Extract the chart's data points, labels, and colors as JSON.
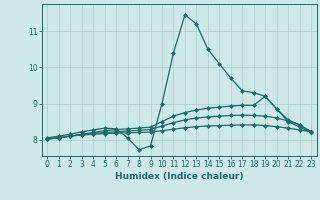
{
  "xlabel": "Humidex (Indice chaleur)",
  "bg_color": "#cce8e8",
  "grid_color": "#a8cccc",
  "line_color": "#1a6b6b",
  "x_ticks": [
    0,
    1,
    2,
    3,
    4,
    5,
    6,
    7,
    8,
    9,
    10,
    11,
    12,
    13,
    14,
    15,
    16,
    17,
    18,
    19,
    20,
    21,
    22,
    23
  ],
  "y_ticks": [
    8,
    9,
    10,
    11
  ],
  "ylim": [
    7.55,
    11.75
  ],
  "xlim": [
    -0.5,
    23.5
  ],
  "line1_x": [
    0,
    1,
    2,
    3,
    4,
    5,
    6,
    7,
    8,
    9,
    10,
    11,
    12,
    13,
    14,
    15,
    16,
    17,
    18,
    19,
    20,
    21,
    22,
    23
  ],
  "line1_y": [
    8.05,
    8.1,
    8.15,
    8.22,
    8.27,
    8.32,
    8.3,
    8.05,
    7.72,
    7.83,
    9.0,
    10.4,
    11.45,
    11.2,
    10.5,
    10.1,
    9.7,
    9.35,
    9.3,
    9.2,
    8.85,
    8.5,
    8.35,
    8.2
  ],
  "line2_x": [
    0,
    1,
    2,
    3,
    4,
    5,
    6,
    7,
    8,
    9,
    10,
    11,
    12,
    13,
    14,
    15,
    16,
    17,
    18,
    19,
    20,
    21,
    22,
    23
  ],
  "line2_y": [
    8.02,
    8.05,
    8.1,
    8.15,
    8.2,
    8.25,
    8.28,
    8.3,
    8.32,
    8.35,
    8.5,
    8.65,
    8.75,
    8.82,
    8.87,
    8.9,
    8.93,
    8.95,
    8.95,
    9.2,
    8.85,
    8.55,
    8.4,
    8.22
  ],
  "line3_x": [
    0,
    1,
    2,
    3,
    4,
    5,
    6,
    7,
    8,
    9,
    10,
    11,
    12,
    13,
    14,
    15,
    16,
    17,
    18,
    19,
    20,
    21,
    22,
    23
  ],
  "line3_y": [
    8.02,
    8.05,
    8.1,
    8.14,
    8.17,
    8.2,
    8.22,
    8.24,
    8.26,
    8.28,
    8.38,
    8.47,
    8.55,
    8.6,
    8.63,
    8.65,
    8.67,
    8.68,
    8.67,
    8.65,
    8.6,
    8.52,
    8.42,
    8.22
  ],
  "line4_x": [
    0,
    1,
    2,
    3,
    4,
    5,
    6,
    7,
    8,
    9,
    10,
    11,
    12,
    13,
    14,
    15,
    16,
    17,
    18,
    19,
    20,
    21,
    22,
    23
  ],
  "line4_y": [
    8.02,
    8.06,
    8.1,
    8.13,
    8.15,
    8.17,
    8.18,
    8.19,
    8.2,
    8.21,
    8.25,
    8.29,
    8.33,
    8.36,
    8.38,
    8.39,
    8.4,
    8.41,
    8.41,
    8.39,
    8.36,
    8.32,
    8.27,
    8.22
  ]
}
